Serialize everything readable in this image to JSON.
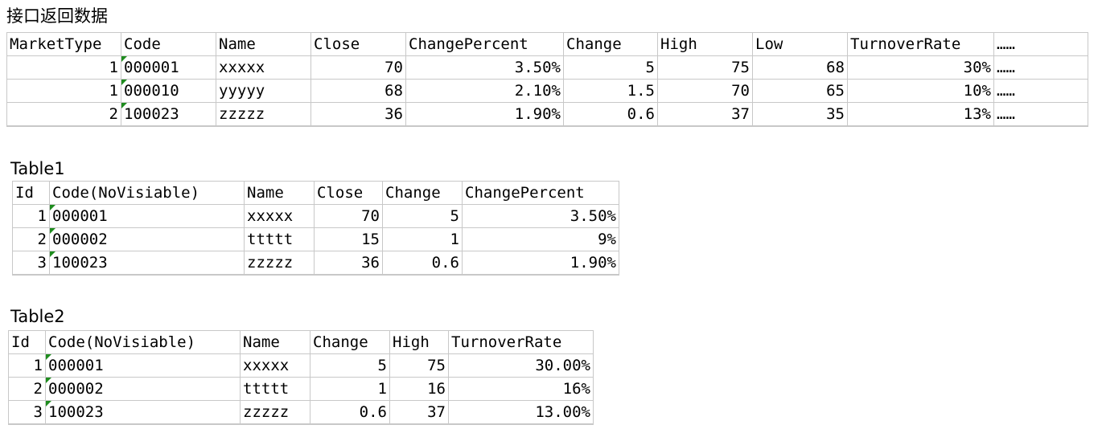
{
  "main_title": "接口返回数据",
  "main_table": {
    "headers": [
      "MarketType",
      "Code",
      "Name",
      "Close",
      "ChangePercent",
      "Change",
      "High",
      "Low",
      "TurnoverRate",
      "……"
    ],
    "rows": [
      [
        "1",
        "000001",
        "xxxxx",
        "70",
        "3.50%",
        "5",
        "75",
        "68",
        "30%",
        "……"
      ],
      [
        "1",
        "000010",
        "yyyyy",
        "68",
        "2.10%",
        "1.5",
        "70",
        "65",
        "10%",
        "……"
      ],
      [
        "2",
        "100023",
        "zzzzz",
        "36",
        "1.90%",
        "0.6",
        "37",
        "35",
        "13%",
        "……"
      ]
    ]
  },
  "table1": {
    "title": "Table1",
    "headers": [
      "Id",
      "Code(NoVisiable)",
      "Name",
      "Close",
      "Change",
      "ChangePercent"
    ],
    "rows": [
      [
        "1",
        "000001",
        "xxxxx",
        "70",
        "5",
        "3.50%"
      ],
      [
        "2",
        "000002",
        "ttttt",
        "15",
        "1",
        "9%"
      ],
      [
        "3",
        "100023",
        "zzzzz",
        "36",
        "0.6",
        "1.90%"
      ]
    ]
  },
  "table2": {
    "title": "Table2",
    "headers": [
      "Id",
      "Code(NoVisiable)",
      "Name",
      "Change",
      "High",
      "TurnoverRate"
    ],
    "rows": [
      [
        "1",
        "000001",
        "xxxxx",
        "5",
        "75",
        "30.00%"
      ],
      [
        "2",
        "000002",
        "ttttt",
        "1",
        "16",
        "16%"
      ],
      [
        "3",
        "100023",
        "zzzzz",
        "0.6",
        "37",
        "13.00%"
      ]
    ]
  }
}
